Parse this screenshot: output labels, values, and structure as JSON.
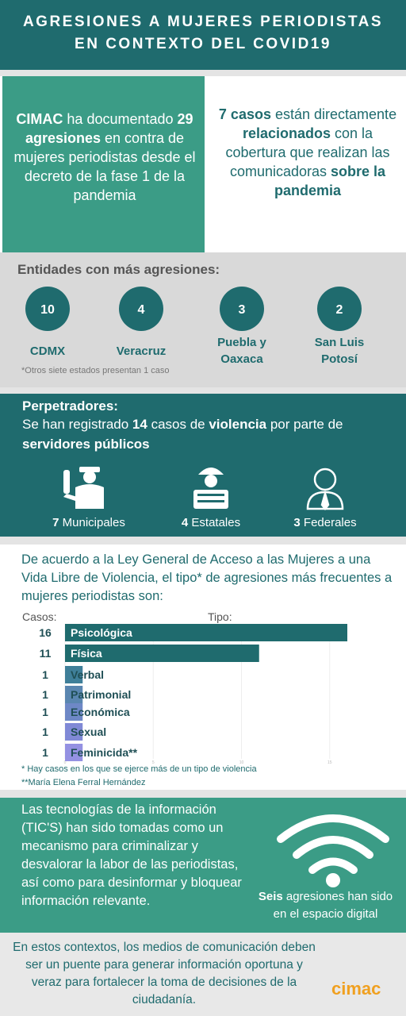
{
  "header": {
    "title_lines": [
      "AGRESIONES A MUJERES PERIODISTAS",
      "EN CONTEXTO DEL COVID19"
    ]
  },
  "intro": {
    "left": [
      {
        "text": "CIMAC",
        "bold": true
      },
      {
        "text": " ha documentado ",
        "bold": false
      },
      {
        "text": "29 agresiones",
        "bold": true
      },
      {
        "text": " en contra de mujeres periodistas desde el decreto de la fase 1 de la pandemia",
        "bold": false
      }
    ],
    "right": [
      {
        "text": "7 casos",
        "bold": true
      },
      {
        "text": " están directamente ",
        "bold": false
      },
      {
        "text": "relacionados",
        "bold": true
      },
      {
        "text": " con la cobertura que realizan las comunicadoras ",
        "bold": false
      },
      {
        "text": "sobre la pandemia",
        "bold": true
      }
    ]
  },
  "entities": {
    "title": "Entidades con más agresiones:",
    "items": [
      {
        "count": 10,
        "name": "CDMX"
      },
      {
        "count": 4,
        "name": "Veracruz"
      },
      {
        "count": 3,
        "name": "Puebla y Oaxaca"
      },
      {
        "count": 2,
        "name": "San Luis Potosí"
      }
    ],
    "note": "*Otros siete estados presentan 1 caso"
  },
  "perpetrators": {
    "title": "Perpetradores:",
    "text": [
      {
        "text": "Se han registrado ",
        "bold": false
      },
      {
        "text": "14",
        "bold": true
      },
      {
        "text": " casos de ",
        "bold": false
      },
      {
        "text": "violencia",
        "bold": true
      },
      {
        "text": " por parte de ",
        "bold": false
      },
      {
        "text": "servidores públicos",
        "bold": true
      }
    ],
    "items": [
      {
        "count": 7,
        "label": "Municipales"
      },
      {
        "count": 4,
        "label": "Estatales"
      },
      {
        "count": 3,
        "label": "Federales"
      }
    ]
  },
  "law": {
    "intro": "De acuerdo a la Ley General de Acceso a las Mujeres a una Vida Libre de Violencia, el tipo* de agresiones más frecuentes a mujeres periodistas son:",
    "chart": {
      "type": "bar",
      "count_header": "Casos:",
      "category_header": "Tipo:",
      "categories": [
        "Psicológica",
        "Física",
        "Verbal",
        "Patrimonial",
        "Económica",
        "Sexual",
        "Feminicida**"
      ],
      "values": [
        16,
        11,
        1,
        1,
        1,
        1,
        1
      ],
      "colors": [
        "#1f6b6e",
        "#1f6b6e",
        "#3f7f99",
        "#5a86b0",
        "#6e88c6",
        "#8089d6",
        "#9491e2"
      ],
      "xlim": [
        0,
        16
      ],
      "xticks": [
        0,
        5,
        10,
        15
      ]
    },
    "notes": [
      "* Hay casos en los que se ejerce más de un tipo de violencia",
      "**María Elena Ferral Hernández"
    ]
  },
  "tics": {
    "text": "Las tecnologías de la información (TIC'S) han sido tomadas como un mecanismo para criminalizar y desvalorar la labor de las periodistas, así como para desinformar y bloquear información relevante.",
    "digital": [
      {
        "text": "Seis",
        "bold": true
      },
      {
        "text": " agresiones han sido en el espacio digital",
        "bold": false
      }
    ]
  },
  "footer": {
    "text": "En estos contextos, los medios de comunicación deben ser un puente para generar información oportuna y veraz para fortalecer la toma de decisiones de la ciudadanía.",
    "logo": "cimac"
  }
}
